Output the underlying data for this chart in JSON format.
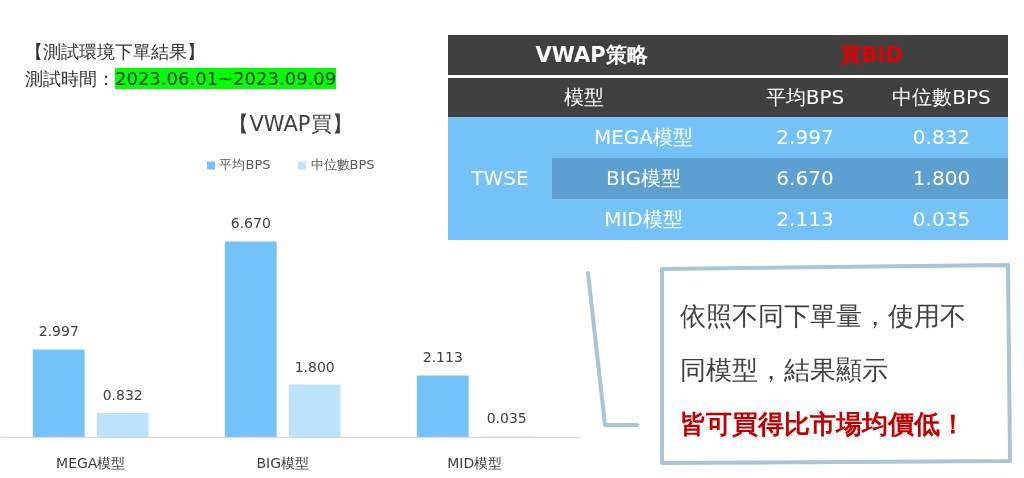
{
  "chart_data": [
    {
      "type": "bar",
      "title": "【VWAP買】",
      "annotations": [
        "【測試環境下單結果】",
        "測試時間：",
        "2023.06.01~2023.09.09"
      ],
      "categories": [
        "MEGA模型",
        "BIG模型",
        "MID模型"
      ],
      "series": [
        {
          "name": "平均BPS",
          "color": "#75c2fa",
          "values": [
            2.997,
            6.67,
            2.113
          ],
          "value_labels": [
            "2.997",
            "6.670",
            "2.113"
          ]
        },
        {
          "name": "中位數BPS",
          "color": "#bde2fb",
          "values": [
            0.832,
            1.8,
            0.035
          ],
          "value_labels": [
            "0.832",
            "1.800",
            "0.035"
          ]
        }
      ],
      "legend": "top",
      "tick_labels": "x"
    },
    {
      "type": "other",
      "title": "VWAP策略",
      "subtitle": "買BID",
      "xlabel": "模型",
      "ylabel": "TWSE",
      "colors": [
        "#74c2f8",
        "#5d9fd0",
        "#74c2f8"
      ]
    },
    {
      "type": "other",
      "annotations": [
        "依照不同下單量，使用不同模型，結果顯示",
        "皆可買得比市場均價低！"
      ]
    }
  ]
}
